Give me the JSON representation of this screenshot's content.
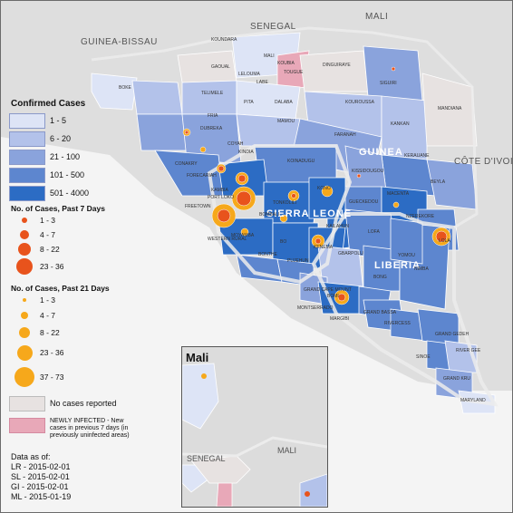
{
  "map": {
    "country_labels": [
      "MALI",
      "SENEGAL",
      "GUINEA-BISSAU",
      "CÔTE D'IVOIRE",
      "GUINEA",
      "SIERRA LEONE",
      "LIBERIA"
    ],
    "place_labels": [
      "KOUNDARA",
      "MALI",
      "KOUBIA",
      "TOUGUE",
      "DINGUIRAYE",
      "SIGUIRI",
      "MANDIANA",
      "GAOUAL",
      "LELOUMA",
      "LABE",
      "BOKE",
      "TELIMELE",
      "PITA",
      "DALABA",
      "KOUROUSSA",
      "KANKAN",
      "FRIA",
      "DUBREKA",
      "COYAH",
      "KINDIA",
      "MAMOU",
      "FARANAH",
      "KERAUANE",
      "CONAKRY",
      "FORECARIAH",
      "KAMBIA",
      "PORT LOKO",
      "FREETOWN",
      "WESTERN RURAL",
      "KOINADUGU",
      "KONO",
      "KAILAHUN",
      "KISSIDOUGOU",
      "GUECKEDOU",
      "MACENTA",
      "BEYLA",
      "NZEREKORE",
      "LOLA",
      "TONKOLILI",
      "BOMBALI",
      "MOYAMBA",
      "BO",
      "KENEMA",
      "BONTHE",
      "PUJEHUN",
      "LOFA",
      "GBARPOLU",
      "YOMOU",
      "BONG",
      "NIMBA",
      "GRAND CAPE MOUNT",
      "BOMI",
      "MONTSERRADO",
      "MARGIBI",
      "GRAND BASSA",
      "RIVERCESS",
      "GRAND GEDEH",
      "RIVER GEE",
      "SINOE",
      "GRAND KRU",
      "MARYLAND"
    ],
    "inset_title": "Mali",
    "inset_labels": [
      "MALI",
      "SENEGAL"
    ]
  },
  "legend": {
    "confirmed_title": "Confirmed Cases",
    "confirmed": [
      {
        "label": "1 - 5",
        "color": "#dde4f6"
      },
      {
        "label": "6 - 20",
        "color": "#b3c2ea"
      },
      {
        "label": "21 - 100",
        "color": "#8aa3dc"
      },
      {
        "label": "101 - 500",
        "color": "#5d86cf"
      },
      {
        "label": "501 - 4000",
        "color": "#2c6cc4"
      }
    ],
    "past7_title": "No. of Cases, Past 7 Days",
    "past7": [
      {
        "label": "1 - 3",
        "color": "#e8531c"
      },
      {
        "label": "4 - 7",
        "color": "#e8531c"
      },
      {
        "label": "8 - 22",
        "color": "#e8531c"
      },
      {
        "label": "23 - 36",
        "color": "#e8531c"
      }
    ],
    "past21_title": "No. of Cases, Past 21 Days",
    "past21": [
      {
        "label": "1 - 3",
        "color": "#f6a81b"
      },
      {
        "label": "4 - 7",
        "color": "#f6a81b"
      },
      {
        "label": "8 - 22",
        "color": "#f6a81b"
      },
      {
        "label": "23 - 36",
        "color": "#f6a81b"
      },
      {
        "label": "37 - 73",
        "color": "#f6a81b"
      }
    ],
    "no_cases_label": "No cases reported",
    "no_cases_color": "#e7e2e1",
    "newly_label": "NEWLY INFECTED - New cases in previous 7 days (in previously uninfected areas)",
    "newly_color": "#e8a8b8",
    "data_as_of_title": "Data as of:",
    "dates": [
      "LR - 2015-02-01",
      "SL - 2015-02-01",
      "GI - 2015-02-01",
      "ML - 2015-01-19"
    ]
  }
}
